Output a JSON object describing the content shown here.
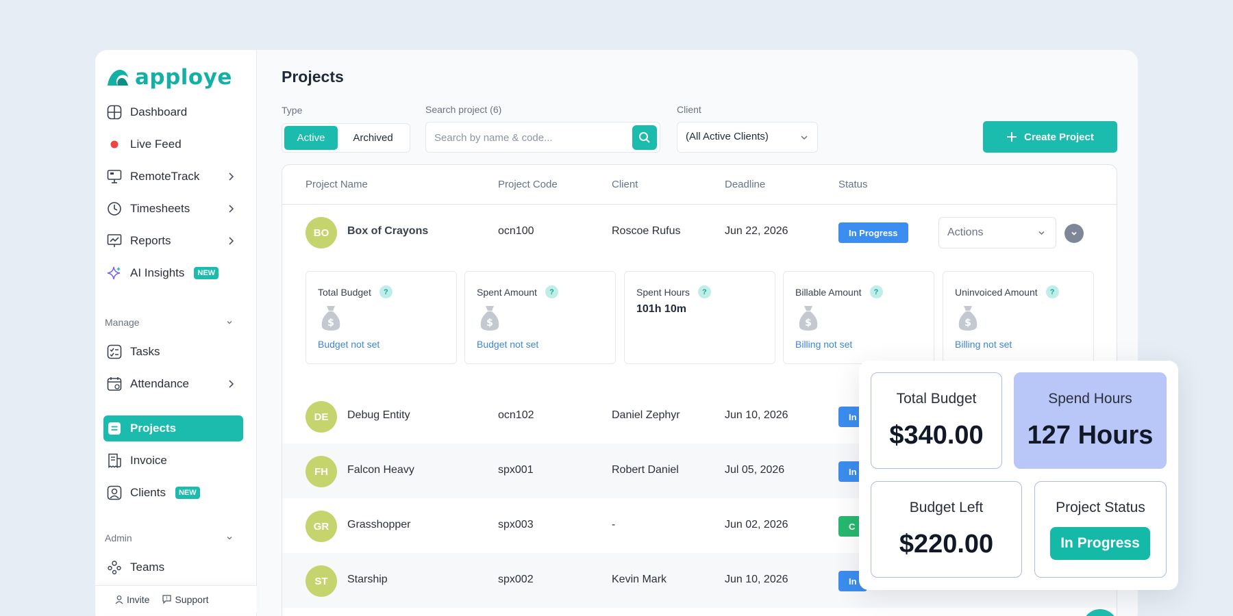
{
  "app": {
    "brand": "apploye"
  },
  "sidebar": {
    "items": [
      {
        "label": "Dashboard",
        "icon": "grid-icon"
      },
      {
        "label": "Live Feed",
        "icon": "live-dot-icon"
      },
      {
        "label": "RemoteTrack",
        "icon": "monitor-icon"
      },
      {
        "label": "Timesheets",
        "icon": "clock-icon"
      },
      {
        "label": "Reports",
        "icon": "chart-board-icon"
      },
      {
        "label": "AI Insights",
        "icon": "sparkle-icon",
        "badge": "NEW"
      }
    ],
    "manage_label": "Manage",
    "manage_items": [
      {
        "label": "Tasks",
        "icon": "checklist-icon"
      },
      {
        "label": "Attendance",
        "icon": "calendar-icon"
      },
      {
        "label": "Projects",
        "icon": "project-icon"
      },
      {
        "label": "Invoice",
        "icon": "invoice-icon"
      },
      {
        "label": "Clients",
        "icon": "user-icon",
        "badge": "NEW"
      }
    ],
    "admin_label": "Admin",
    "admin_items": [
      {
        "label": "Teams",
        "icon": "teams-icon"
      }
    ],
    "footer": {
      "invite": "Invite",
      "support": "Support"
    }
  },
  "main": {
    "title": "Projects",
    "type_label": "Type",
    "type_active": "Active",
    "type_archived": "Archived",
    "search_label": "Search project (6)",
    "search_placeholder": "Search by name & code...",
    "client_label": "Client",
    "client_value": "(All Active Clients)",
    "create_button": "Create Project"
  },
  "table": {
    "headers": [
      "Project Name",
      "Project Code",
      "Client",
      "Deadline",
      "Status"
    ],
    "rows": [
      {
        "initials": "BO",
        "name": "Box of Crayons",
        "code": "ocn100",
        "client": "Roscoe Rufus",
        "deadline": "Jun 22, 2026",
        "status": "In Progress",
        "actions": "Actions"
      },
      {
        "initials": "DE",
        "name": "Debug Entity",
        "code": "ocn102",
        "client": "Daniel Zephyr",
        "deadline": "Jun 10, 2026",
        "status": "In"
      },
      {
        "initials": "FH",
        "name": "Falcon Heavy",
        "code": "spx001",
        "client": "Robert Daniel",
        "deadline": "Jul 05, 2026",
        "status": "In"
      },
      {
        "initials": "GR",
        "name": "Grasshopper",
        "code": "spx003",
        "client": "-",
        "deadline": "Jun 02, 2026",
        "status": "C"
      },
      {
        "initials": "ST",
        "name": "Starship",
        "code": "spx002",
        "client": "Kevin Mark",
        "deadline": "Jun 10, 2026",
        "status": "In"
      }
    ],
    "details": [
      {
        "title": "Total Budget",
        "note": "Budget not set"
      },
      {
        "title": "Spent Amount",
        "note": "Budget not set"
      },
      {
        "title": "Spent Hours",
        "value": "101h 10m"
      },
      {
        "title": "Billable Amount",
        "note": "Billing not set"
      },
      {
        "title": "Uninvoiced Amount",
        "note": "Billing not set"
      }
    ],
    "help_mark": "?"
  },
  "summary": {
    "total_budget_label": "Total Budget",
    "total_budget_value": "$340.00",
    "spend_hours_label": "Spend Hours",
    "spend_hours_value": "127 Hours",
    "budget_left_label": "Budget Left",
    "budget_left_value": "$220.00",
    "project_status_label": "Project Status",
    "project_status_value": "In Progress"
  },
  "colors": {
    "accent": "#1bbbad",
    "status_blue": "#3b8def",
    "status_green": "#27b86e",
    "avatar": "#c5d46c",
    "highlight": "#b9c6f8"
  }
}
